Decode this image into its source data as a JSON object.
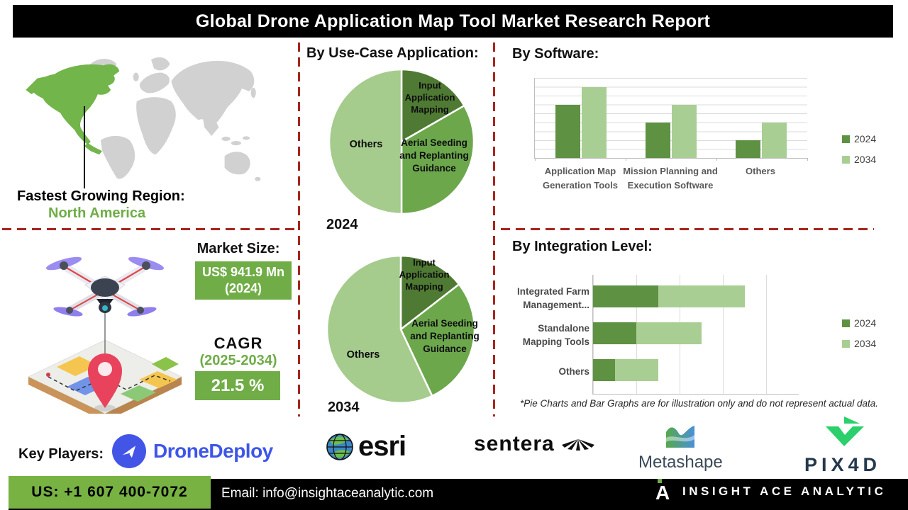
{
  "header": {
    "title": "Global Drone Application Map Tool Market Research Report"
  },
  "region": {
    "label": "Fastest Growing Region:",
    "value": "North America"
  },
  "market": {
    "size_label": "Market Size:",
    "size_value": "US$ 941.9 Mn (2024)",
    "cagr_label": "CAGR",
    "cagr_period": "(2025-2034)",
    "cagr_value": "21.5 %"
  },
  "chart_data": [
    {
      "id": "usecase_2024",
      "type": "pie",
      "section_title": "By Use-Case Application:",
      "year_label": "2024",
      "labels": [
        "Input Application Mapping",
        "Aerial Seeding and Replanting Guidance",
        "Others"
      ],
      "values": [
        16.7,
        33.3,
        50
      ],
      "colors": [
        "#4F7A33",
        "#6CA74C",
        "#A5CB8D"
      ],
      "start_angle_deg": 0,
      "note": "illustrative"
    },
    {
      "id": "usecase_2034",
      "type": "pie",
      "year_label": "2034",
      "labels": [
        "Input Application Mapping",
        "Aerial Seeding and Replanting Guidance",
        "Others"
      ],
      "values": [
        14.5,
        28.5,
        57
      ],
      "colors": [
        "#4F7A33",
        "#6CA74C",
        "#A5CB8D"
      ],
      "start_angle_deg": 0,
      "note": "illustrative"
    },
    {
      "id": "by_software",
      "type": "bar",
      "title": "By Software:",
      "categories": [
        "Application Map Generation Tools",
        "Mission Planning and Execution Software",
        "Others"
      ],
      "series": [
        {
          "name": "2024",
          "color": "#5E9142",
          "values": [
            6,
            4,
            2
          ]
        },
        {
          "name": "2034",
          "color": "#A9CE93",
          "values": [
            8,
            6,
            4
          ]
        }
      ],
      "ylim": [
        0,
        9
      ],
      "grid": true,
      "legend_position": "right",
      "note": "illustrative"
    },
    {
      "id": "by_integration",
      "type": "bar-horizontal-stacked",
      "title": "By Integration Level:",
      "categories": [
        "Integrated Farm Management...",
        "Standalone Mapping Tools",
        "Others"
      ],
      "series": [
        {
          "name": "2024",
          "color": "#5E9142",
          "values": [
            30,
            20,
            10
          ]
        },
        {
          "name": "2034",
          "color": "#A9CE93",
          "values": [
            40,
            30,
            20
          ]
        }
      ],
      "xlim": [
        0,
        95
      ],
      "grid_step": 20,
      "legend_position": "right",
      "note": "illustrative"
    }
  ],
  "note": "*Pie Charts and Bar Graphs are for illustration only and do not represent actual data.",
  "key_players": {
    "label": "Key Players:",
    "names": [
      "DroneDeploy",
      "esri",
      "sentera",
      "Metashape",
      "PIX4D"
    ]
  },
  "footer": {
    "phone": "US: +1 607 400-7072",
    "email": "Email: info@insightaceanalytic.com",
    "brand": "INSIGHT ACE ANALYTIC"
  },
  "colors": {
    "accent_green": "#70AD47",
    "pie_dark_green": "#4F7A33",
    "pie_mid_green": "#6CA74C",
    "pie_light_green": "#A5CB8D",
    "bar_2024": "#5E9142",
    "bar_2034": "#A9CE93",
    "divider_red": "#A6261E",
    "footer_green": "#77B243",
    "title_bg": "#000000",
    "map_gray": "#D1D1D1",
    "map_highlight": "#72B54A"
  }
}
